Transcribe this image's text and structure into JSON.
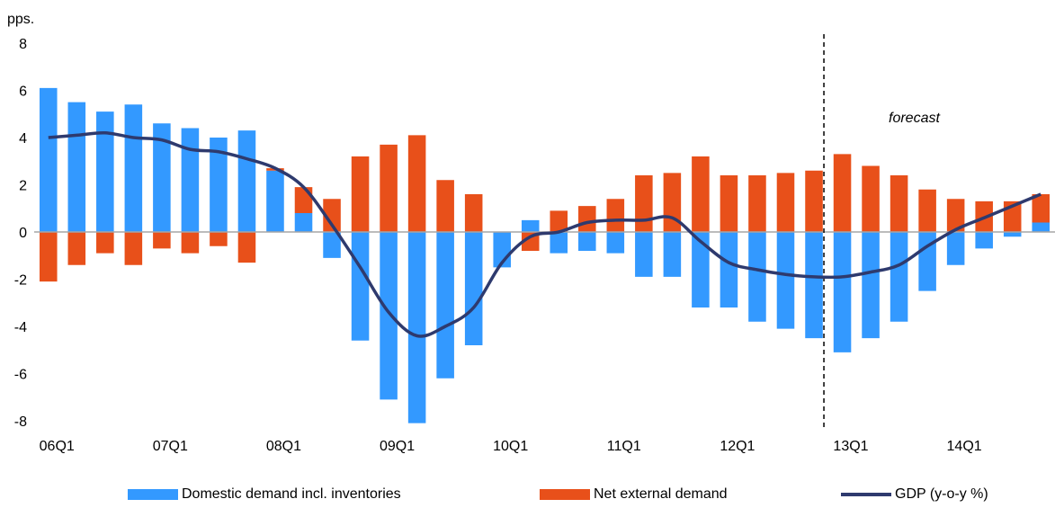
{
  "chart_data": {
    "type": "bar",
    "unit_label": "pps.",
    "annotation": "forecast",
    "ylim": [
      -8,
      8
    ],
    "y_ticks": [
      "8",
      "6",
      "4",
      "2",
      "0",
      "-2",
      "-4",
      "-6",
      "-8"
    ],
    "y_tick_values": [
      8,
      6,
      4,
      2,
      0,
      -2,
      -4,
      -6,
      -8
    ],
    "x_tick_labels": [
      "06Q1",
      "07Q1",
      "08Q1",
      "09Q1",
      "10Q1",
      "11Q1",
      "12Q1",
      "13Q1",
      "14Q1"
    ],
    "categories": [
      "06Q1",
      "06Q2",
      "06Q3",
      "06Q4",
      "07Q1",
      "07Q2",
      "07Q3",
      "07Q4",
      "08Q1",
      "08Q2",
      "08Q3",
      "08Q4",
      "09Q1",
      "09Q2",
      "09Q3",
      "09Q4",
      "10Q1",
      "10Q2",
      "10Q3",
      "10Q4",
      "11Q1",
      "11Q2",
      "11Q3",
      "11Q4",
      "12Q1",
      "12Q2",
      "12Q3",
      "12Q4",
      "13Q1",
      "13Q2",
      "13Q3",
      "13Q4",
      "14Q1",
      "14Q2",
      "14Q3",
      "14Q4"
    ],
    "forecast_start": "13Q1",
    "stacked": true,
    "series": [
      {
        "name": "Domestic demand incl. inventories",
        "type": "bar",
        "color": "#3399FF",
        "values": [
          6.1,
          5.5,
          5.1,
          5.4,
          4.6,
          4.4,
          4.0,
          4.3,
          2.6,
          0.8,
          -1.1,
          -4.6,
          -7.1,
          -8.1,
          -6.2,
          -4.8,
          -1.5,
          0.5,
          -0.9,
          -0.8,
          -0.9,
          -1.9,
          -1.9,
          -3.2,
          -3.2,
          -3.8,
          -4.1,
          -4.5,
          -5.1,
          -4.5,
          -3.8,
          -2.5,
          -1.4,
          -0.7,
          -0.2,
          0.4
        ]
      },
      {
        "name": "Net external demand",
        "type": "bar",
        "color": "#E8501A",
        "values": [
          -2.1,
          -1.4,
          -0.9,
          -1.4,
          -0.7,
          -0.9,
          -0.6,
          -1.3,
          0.1,
          1.1,
          1.4,
          3.2,
          3.7,
          4.1,
          2.2,
          1.6,
          0.0,
          -0.8,
          0.9,
          1.1,
          1.4,
          2.4,
          2.5,
          3.2,
          2.4,
          2.4,
          2.5,
          2.6,
          3.3,
          2.8,
          2.4,
          1.8,
          1.4,
          1.3,
          1.3,
          1.2
        ]
      },
      {
        "name": "GDP (y-o-y %)",
        "type": "line",
        "color": "#2E3A6E",
        "values": [
          4.0,
          4.1,
          4.2,
          4.0,
          3.9,
          3.5,
          3.4,
          3.1,
          2.7,
          1.9,
          0.3,
          -1.5,
          -3.4,
          -4.4,
          -4.0,
          -3.2,
          -1.3,
          -0.2,
          0.0,
          0.4,
          0.5,
          0.5,
          0.6,
          -0.4,
          -1.3,
          -1.6,
          -1.8,
          -1.9,
          -1.9,
          -1.7,
          -1.4,
          -0.6,
          0.1,
          0.6,
          1.1,
          1.6
        ]
      }
    ]
  }
}
